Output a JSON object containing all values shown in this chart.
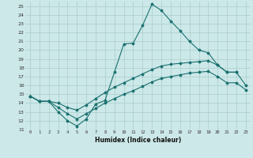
{
  "title": "",
  "xlabel": "Humidex (Indice chaleur)",
  "ylabel": "",
  "background_color": "#cce8e8",
  "grid_color": "#aacccc",
  "line_color": "#1a7070",
  "xlim": [
    -0.5,
    23.5
  ],
  "ylim": [
    11,
    25.5
  ],
  "xticks": [
    0,
    1,
    2,
    3,
    4,
    5,
    6,
    7,
    8,
    9,
    10,
    11,
    12,
    13,
    14,
    15,
    16,
    17,
    18,
    19,
    20,
    21,
    22,
    23
  ],
  "yticks": [
    11,
    12,
    13,
    14,
    15,
    16,
    17,
    18,
    19,
    20,
    21,
    22,
    23,
    24,
    25
  ],
  "line1_x": [
    0,
    1,
    2,
    3,
    4,
    5,
    6,
    7,
    8,
    9,
    10,
    11,
    12,
    13,
    14,
    15,
    16,
    17,
    18,
    19,
    20,
    21,
    22
  ],
  "line1_y": [
    14.8,
    14.2,
    14.2,
    13.0,
    12.0,
    11.4,
    12.2,
    13.9,
    14.3,
    17.5,
    20.7,
    20.8,
    22.8,
    25.2,
    24.5,
    23.3,
    22.2,
    21.0,
    20.0,
    19.7,
    18.3,
    17.5,
    17.5
  ],
  "line2_x": [
    0,
    1,
    2,
    3,
    4,
    5,
    6,
    7,
    8,
    9,
    10,
    11,
    12,
    13,
    14,
    15,
    16,
    17,
    18,
    19,
    20,
    21,
    22,
    23
  ],
  "line2_y": [
    14.8,
    14.2,
    14.2,
    14.0,
    13.5,
    13.2,
    13.8,
    14.5,
    15.2,
    15.8,
    16.3,
    16.8,
    17.3,
    17.8,
    18.2,
    18.4,
    18.5,
    18.6,
    18.7,
    18.8,
    18.3,
    17.5,
    17.5,
    16.0
  ],
  "line3_x": [
    0,
    1,
    2,
    3,
    4,
    5,
    6,
    7,
    8,
    9,
    10,
    11,
    12,
    13,
    14,
    15,
    16,
    17,
    18,
    19,
    20,
    21,
    22,
    23
  ],
  "line3_y": [
    14.8,
    14.2,
    14.2,
    13.5,
    12.8,
    12.2,
    12.8,
    13.4,
    14.0,
    14.5,
    15.0,
    15.4,
    15.9,
    16.4,
    16.8,
    17.0,
    17.2,
    17.4,
    17.5,
    17.6,
    17.0,
    16.3,
    16.3,
    15.5
  ]
}
